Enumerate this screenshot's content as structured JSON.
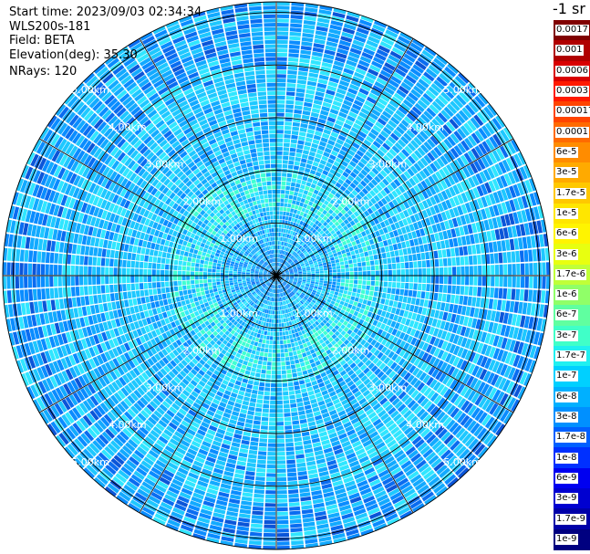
{
  "header": {
    "start_time": "Start time: 2023/09/03 02:34:34",
    "instrument": "WLS200s-181",
    "field": "Field: BETA",
    "elevation": "Elevation(deg): 35.30",
    "nrays": "NRays: 120"
  },
  "colorbar": {
    "title": "-1 sr",
    "labels": [
      "0.0017",
      "0.001",
      "0.0006",
      "0.0003",
      "0.00017",
      "0.0001",
      "6e-5",
      "3e-5",
      "1.7e-5",
      "1e-5",
      "6e-6",
      "3e-6",
      "1.7e-6",
      "1e-6",
      "6e-7",
      "3e-7",
      "1.7e-7",
      "1e-7",
      "6e-8",
      "3e-8",
      "1.7e-8",
      "1e-8",
      "6e-9",
      "3e-9",
      "1.7e-9",
      "1e-9"
    ],
    "colors": [
      "#800000",
      "#b00000",
      "#d80000",
      "#ff1a00",
      "#ff4400",
      "#ff6a00",
      "#ff8c00",
      "#ffaa00",
      "#ffc800",
      "#ffe600",
      "#fff400",
      "#e8ff10",
      "#c0ff38",
      "#90ff68",
      "#60ffa0",
      "#40ffc8",
      "#20f0f0",
      "#00d0ff",
      "#00b0ff",
      "#0090ff",
      "#0060ff",
      "#0030ff",
      "#0000f0",
      "#0000d0",
      "#0000a8",
      "#000080"
    ]
  },
  "chart_data": {
    "type": "heatmap",
    "projection": "polar PPI scan",
    "field": "BETA",
    "elevation_deg": 35.3,
    "n_rays": 120,
    "range_unit": "km",
    "range_max_km": 5.2,
    "range_ring_labels_km": [
      1.0,
      2.0,
      3.0,
      4.0,
      5.0
    ],
    "range_ring_label_text": [
      "1.00km",
      "2.00km",
      "3.00km",
      "4.00km",
      "5.00km"
    ],
    "radial_lines_deg": [
      0,
      30,
      60,
      90,
      120,
      150,
      180,
      210,
      240,
      270,
      300,
      330
    ],
    "value_range": [
      1e-09,
      0.0017
    ],
    "scale": "log",
    "dominant_values": {
      "near_center_km_0_to_1": "1e-7 to 6e-8",
      "ring_km_1_to_2": "1.7e-7 to 1e-7",
      "outer_km_2_to_5": "6e-8 to 1.7e-8"
    }
  }
}
